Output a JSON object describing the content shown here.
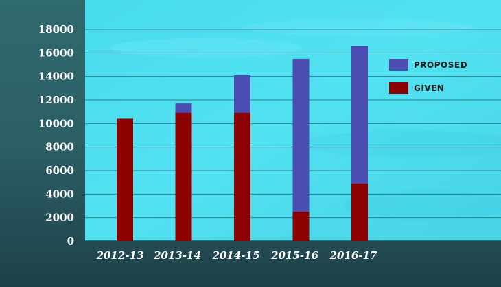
{
  "chart_data": {
    "type": "bar",
    "categories": [
      "2012-13",
      "2013-14",
      "2014-15",
      "2015-16",
      "2016-17"
    ],
    "series": [
      {
        "name": "PROPOSED",
        "color": "#4b4eb0",
        "values": [
          null,
          11700,
          14100,
          15500,
          16600
        ]
      },
      {
        "name": "GIVEN",
        "color": "#8b0000",
        "values": [
          10400,
          10900,
          10900,
          2500,
          4900
        ]
      }
    ],
    "yticks": [
      "0",
      "2000",
      "4000",
      "6000",
      "8000",
      "10000",
      "12000",
      "14000",
      "16000",
      "18000"
    ],
    "ylim": [
      0,
      18000
    ],
    "grid": true,
    "legend_position": "top-right",
    "title": "",
    "xlabel": "",
    "ylabel": "",
    "colors": {
      "plot_background": "#4fe0f0",
      "outer_background": "#2a5a60",
      "gridline": "#2f7f8a",
      "tick_text": "#ffffff",
      "legend_text": "#1a1a1a"
    }
  }
}
